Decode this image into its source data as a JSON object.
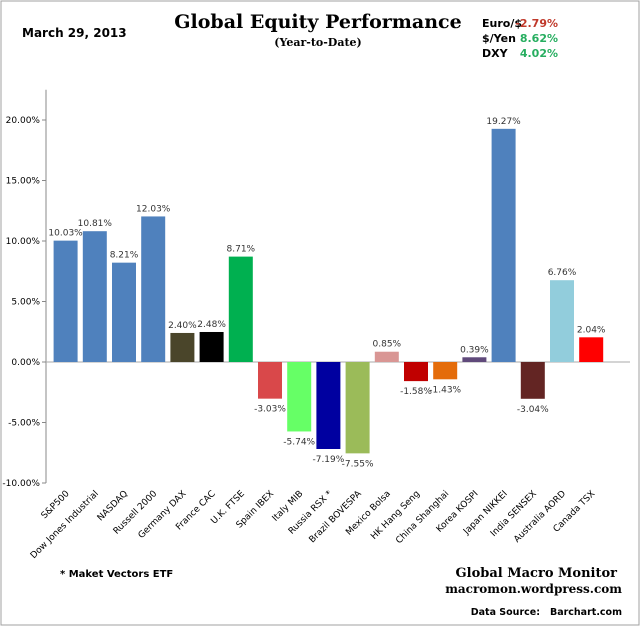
{
  "header": {
    "date": "March 29, 2013",
    "title": "Global Equity Performance",
    "subtitle": "(Year-to-Date)",
    "fx": [
      {
        "label": "Euro/$",
        "value": "-2.79%",
        "color": "#c0392b"
      },
      {
        "label": "$/Yen",
        "value": "8.62%",
        "color": "#27ae60"
      },
      {
        "label": "DXY",
        "value": "4.02%",
        "color": "#27ae60"
      }
    ]
  },
  "footer": {
    "note": "* Maket Vectors ETF",
    "brand": "Global Macro Monitor",
    "site": "macromon.wordpress.com",
    "source_label": "Data Source:",
    "source": "Barchart.com"
  },
  "chart_data": {
    "type": "bar",
    "title": "Global Equity Performance",
    "subtitle": "(Year-to-Date)",
    "xlabel": "",
    "ylabel": "",
    "ylim": [
      -10,
      22.5
    ],
    "yticks": [
      -10,
      -5,
      0,
      5,
      10,
      15,
      20
    ],
    "ytick_labels": [
      "-10.00%",
      "-5.00%",
      "0.00%",
      "5.00%",
      "10.00%",
      "15.00%",
      "20.00%"
    ],
    "grid": false,
    "categories": [
      "S&P500",
      "Dow Jones Industrial",
      "NASDAQ",
      "Russell 2000",
      "Germany DAX",
      "France CAC",
      "U.K. FTSE",
      "Spain IBEX",
      "Italy  MIB",
      "Russia RSX *",
      "Brazil BOVESPA",
      "Mexico Bolsa",
      "HK  Hang Seng",
      "China Shanghai",
      "Korea KOSPI",
      "Japan NIKKEI",
      "India SENSEX",
      "Australia AORD",
      "Canada TSX"
    ],
    "values": [
      10.03,
      10.81,
      8.21,
      12.03,
      2.4,
      2.48,
      8.71,
      -3.03,
      -5.74,
      -7.19,
      -7.55,
      0.85,
      -1.58,
      -1.43,
      0.39,
      19.27,
      -3.04,
      6.76,
      2.04
    ],
    "value_labels": [
      "10.03%",
      "10.81%",
      "8.21%",
      "12.03%",
      "2.40%",
      "2.48%",
      "8.71%",
      "-3.03%",
      "-5.74%",
      "-7.19%",
      "-7.55%",
      "0.85%",
      "-1.58%",
      "-1.43%",
      "0.39%",
      "19.27%",
      "-3.04%",
      "6.76%",
      "2.04%"
    ],
    "colors": [
      "#4f81bd",
      "#4f81bd",
      "#4f81bd",
      "#4f81bd",
      "#4a452a",
      "#000000",
      "#00b050",
      "#d9484a",
      "#66ff66",
      "#0000a0",
      "#9bbb59",
      "#d99694",
      "#c00000",
      "#e46c0a",
      "#604a7b",
      "#4f81bd",
      "#632523",
      "#92cddc",
      "#ff0000"
    ]
  }
}
